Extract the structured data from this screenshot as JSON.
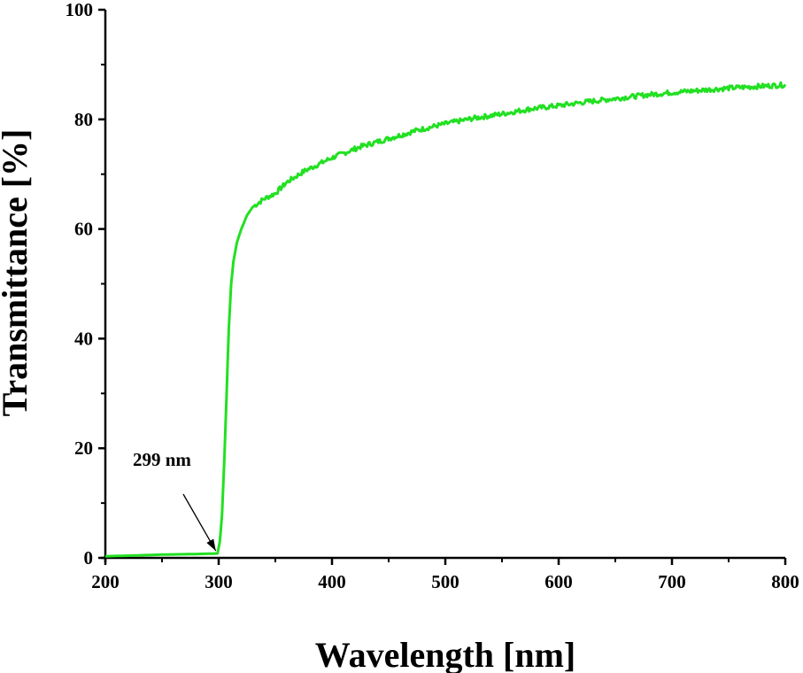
{
  "chart_data": {
    "type": "line",
    "title": "",
    "xlabel": "Wavelength [nm]",
    "ylabel": "Transmittance [%]",
    "xlim": [
      200,
      800
    ],
    "ylim": [
      0,
      100
    ],
    "xticks": [
      200,
      300,
      400,
      500,
      600,
      700,
      800
    ],
    "yticks": [
      0,
      20,
      40,
      60,
      80,
      100
    ],
    "xtick_labels": [
      "200",
      "300",
      "400",
      "500",
      "600",
      "700",
      "800"
    ],
    "ytick_labels": [
      "0",
      "20",
      "40",
      "60",
      "80",
      "100"
    ],
    "grid": false,
    "series": [
      {
        "name": "Transmittance",
        "color": "#22e022",
        "x": [
          200,
          220,
          250,
          280,
          299,
          301,
          303,
          305,
          307,
          309,
          311,
          313,
          316,
          320,
          325,
          330,
          340,
          350,
          360,
          375,
          400,
          425,
          450,
          475,
          500,
          525,
          550,
          575,
          600,
          625,
          650,
          675,
          700,
          725,
          750,
          775,
          800
        ],
        "y": [
          0.3,
          0.4,
          0.6,
          0.7,
          0.8,
          3,
          8,
          18,
          30,
          42,
          50,
          54,
          57.5,
          60,
          62.5,
          64,
          65.5,
          66.5,
          68.5,
          70.5,
          73,
          75,
          76.5,
          78,
          79.2,
          80.2,
          81,
          81.9,
          82.5,
          83.2,
          83.8,
          84.4,
          84.9,
          85.3,
          85.7,
          86,
          86.3
        ]
      }
    ],
    "annotations": [
      {
        "text": "299 nm",
        "x": 299,
        "y": 0.8
      }
    ]
  }
}
